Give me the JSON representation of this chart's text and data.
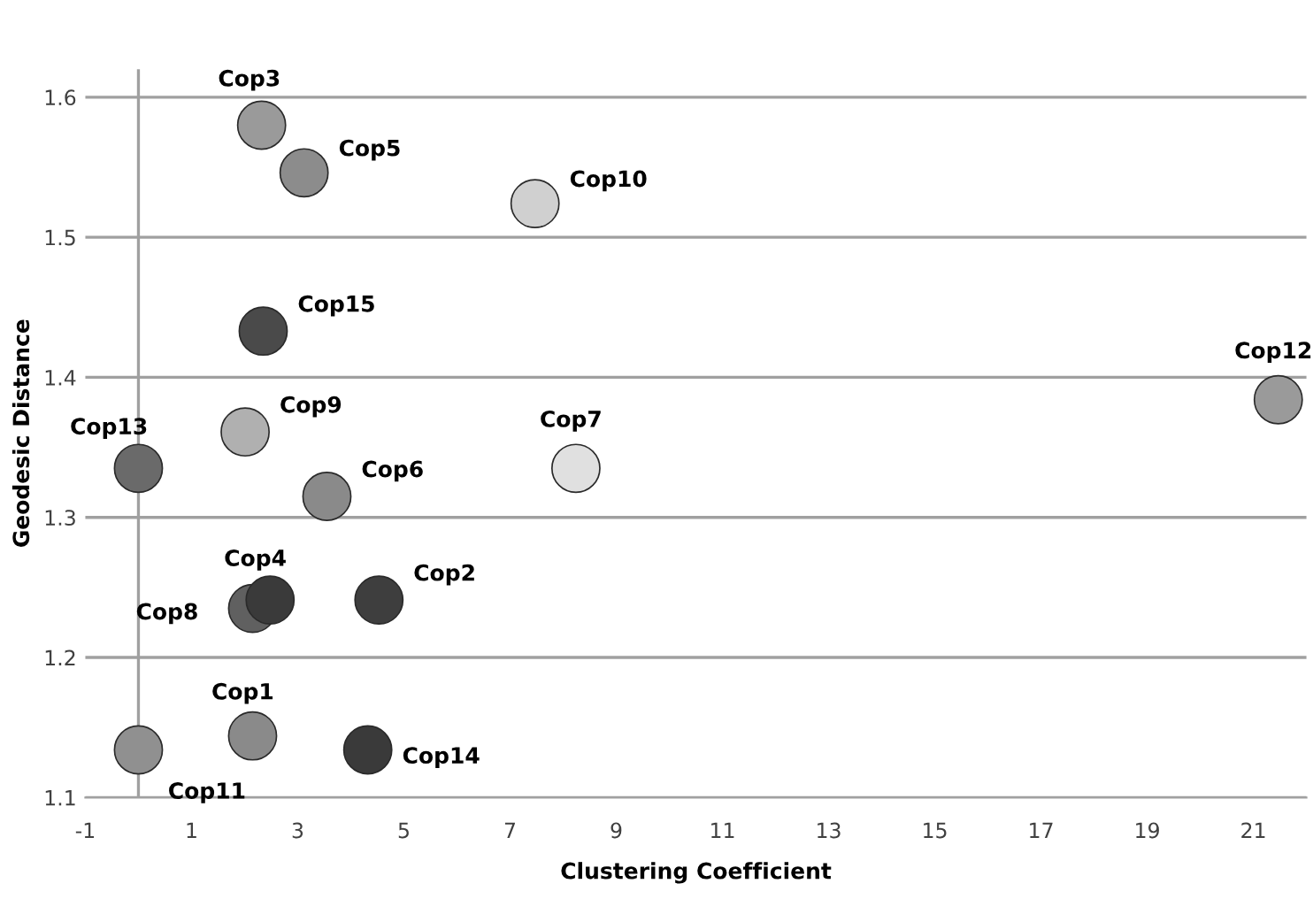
{
  "chart_data": {
    "type": "scatter",
    "xlabel": "Clustering Coefficient",
    "ylabel": "Geodesic Distance",
    "x": [
      2.32,
      3.12,
      7.47,
      2.35,
      21.47,
      2.01,
      0,
      8.24,
      3.55,
      2.48,
      2.15,
      4.53,
      2.15,
      0,
      4.32
    ],
    "values": [
      1.58,
      1.546,
      1.524,
      1.433,
      1.384,
      1.361,
      1.335,
      1.335,
      1.315,
      1.241,
      1.235,
      1.241,
      1.144,
      1.134,
      1.134
    ],
    "colors": [
      "#9a9a9a",
      "#8c8c8c",
      "#d0d0d0",
      "#4a4a4a",
      "#9a9a9a",
      "#b0b0b0",
      "#6a6a6a",
      "#e0e0e0",
      "#8a8a8a",
      "#3a3a3a",
      "#606060",
      "#3e3e3e",
      "#8a8a8a",
      "#909090",
      "#3a3a3a"
    ],
    "annotations": [
      {
        "text": "Cop3",
        "x": 2.32,
        "y": 1.58
      },
      {
        "text": "Cop5",
        "x": 3.12,
        "y": 1.546
      },
      {
        "text": "Cop10",
        "x": 7.47,
        "y": 1.524
      },
      {
        "text": "Cop15",
        "x": 2.35,
        "y": 1.433
      },
      {
        "text": "Cop12",
        "x": 21.47,
        "y": 1.384
      },
      {
        "text": "Cop9",
        "x": 2.01,
        "y": 1.361
      },
      {
        "text": "Cop13",
        "x": 0,
        "y": 1.335
      },
      {
        "text": "Cop7",
        "x": 8.24,
        "y": 1.335
      },
      {
        "text": "Cop6",
        "x": 3.55,
        "y": 1.315
      },
      {
        "text": "Cop4",
        "x": 2.48,
        "y": 1.241
      },
      {
        "text": "Cop8",
        "x": 2.15,
        "y": 1.235
      },
      {
        "text": "Cop2",
        "x": 4.53,
        "y": 1.241
      },
      {
        "text": "Cop1",
        "x": 2.15,
        "y": 1.144
      },
      {
        "text": "Cop11",
        "x": 0,
        "y": 1.134
      },
      {
        "text": "Cop14",
        "x": 4.32,
        "y": 1.134
      }
    ],
    "xlim": [
      -1,
      22
    ],
    "xticks": [
      -1,
      1,
      3,
      5,
      7,
      9,
      11,
      13,
      15,
      17,
      19,
      21
    ],
    "ylim": [
      1.1,
      1.62
    ],
    "yticks": [
      1.1,
      1.2,
      1.3,
      1.4,
      1.5,
      1.6
    ],
    "ref_lines": [
      {
        "axis": "x",
        "value": 0,
        "color": "#a0a0a0"
      }
    ],
    "grid": "y",
    "marker": "circle"
  }
}
